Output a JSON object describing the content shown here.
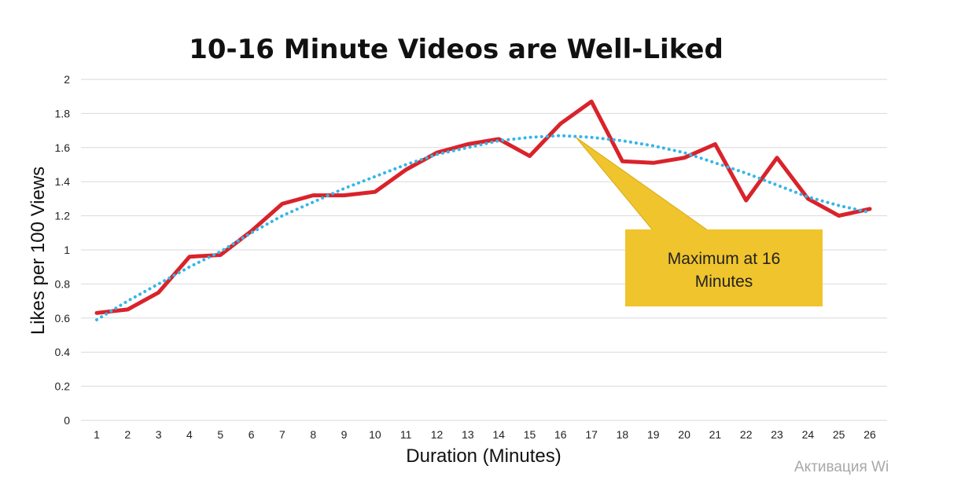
{
  "chart_data": {
    "type": "line",
    "title": "10-16 Minute Videos are Well-Liked",
    "xlabel": "Duration (Minutes)",
    "ylabel": "Likes per 100 Views",
    "x": [
      1,
      2,
      3,
      4,
      5,
      6,
      7,
      8,
      9,
      10,
      11,
      12,
      13,
      14,
      15,
      16,
      17,
      18,
      19,
      20,
      21,
      22,
      23,
      24,
      25,
      26
    ],
    "xticks": [
      "1",
      "2",
      "3",
      "4",
      "5",
      "6",
      "7",
      "8",
      "9",
      "10",
      "11",
      "12",
      "13",
      "14",
      "15",
      "16",
      "17",
      "18",
      "19",
      "20",
      "21",
      "22",
      "23",
      "24",
      "25",
      "26"
    ],
    "ylim": [
      0,
      2
    ],
    "yticks": [
      "0",
      "0.2",
      "0.4",
      "0.6",
      "0.8",
      "1",
      "1.2",
      "1.4",
      "1.6",
      "1.8",
      "2"
    ],
    "grid": true,
    "series": [
      {
        "type": "line",
        "color": "#d9232b",
        "values": [
          0.63,
          0.65,
          0.75,
          0.96,
          0.97,
          1.11,
          1.27,
          1.32,
          1.32,
          1.34,
          1.47,
          1.57,
          1.62,
          1.65,
          1.55,
          1.74,
          1.87,
          1.52,
          1.51,
          1.54,
          1.62,
          1.29,
          1.54,
          1.3,
          1.2,
          1.24
        ]
      },
      {
        "type": "trendline",
        "color": "#35b6e9",
        "values": [
          0.59,
          0.7,
          0.8,
          0.9,
          0.99,
          1.1,
          1.2,
          1.28,
          1.36,
          1.43,
          1.5,
          1.56,
          1.6,
          1.64,
          1.66,
          1.67,
          1.66,
          1.64,
          1.61,
          1.57,
          1.51,
          1.45,
          1.38,
          1.31,
          1.26,
          1.22
        ]
      }
    ],
    "annotations": [
      {
        "text_lines": [
          "Maximum at 16",
          "Minutes"
        ],
        "x": 16.5,
        "y": 1.66,
        "fill": "#f0c42c"
      }
    ]
  },
  "watermark": "Активация Wi"
}
